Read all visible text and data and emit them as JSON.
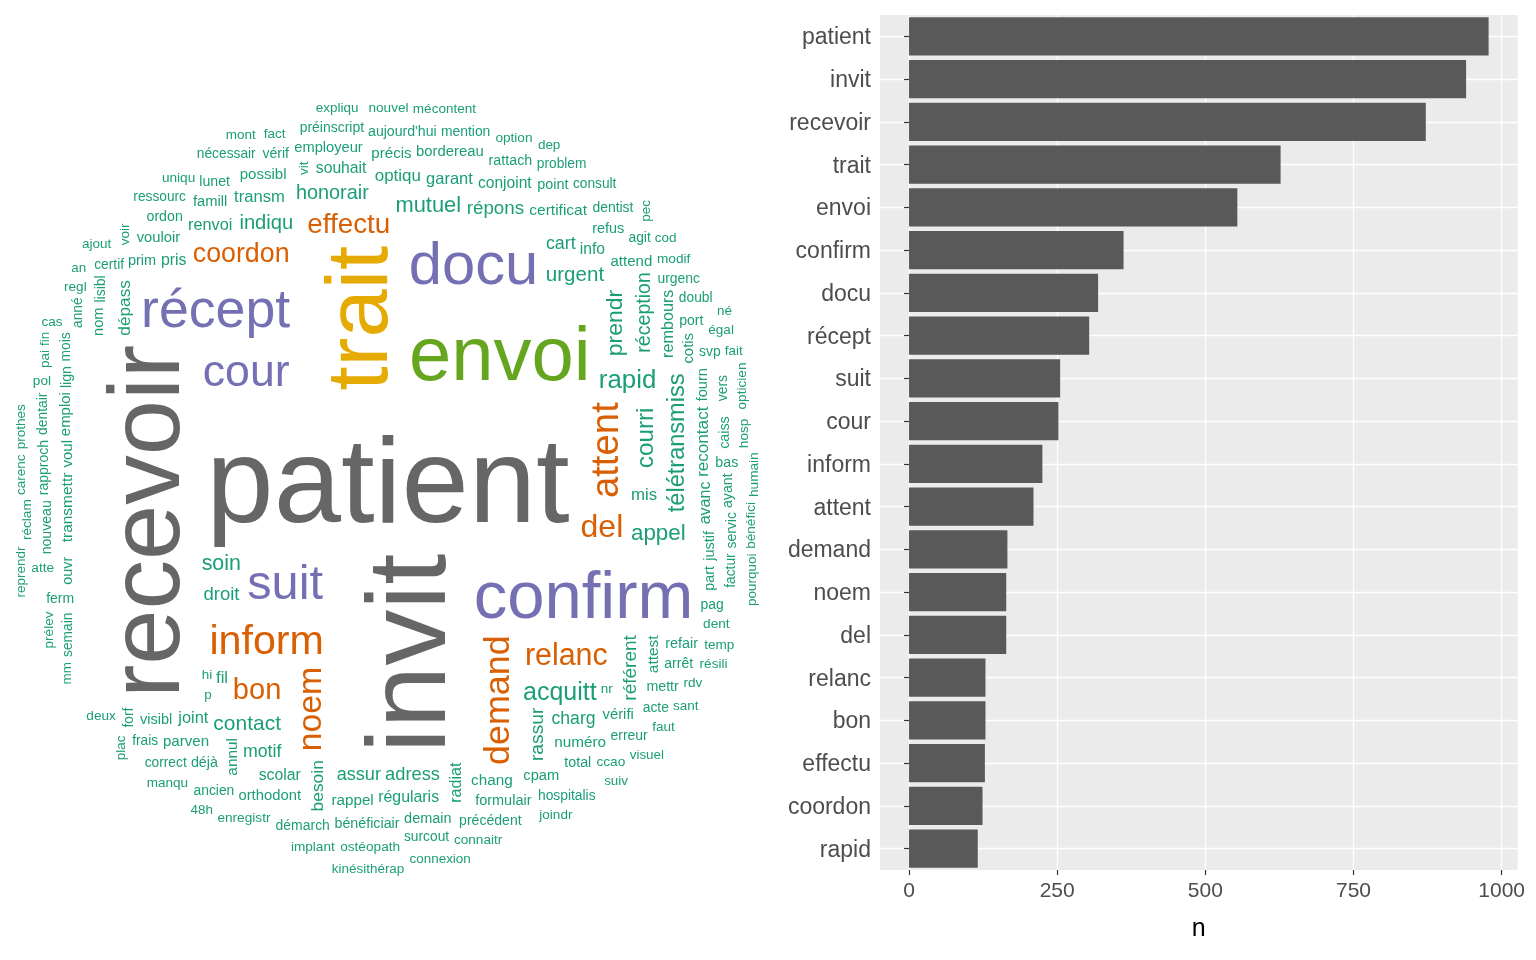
{
  "chart_data": [
    {
      "type": "other",
      "categories": [
        "patient",
        "invit",
        "recevoir",
        "trait",
        "envoi",
        "confirm",
        "docu",
        "récept",
        "suit",
        "cour",
        "inform",
        "attent",
        "demand",
        "noem",
        "del",
        "relanc",
        "bon",
        "effectu",
        "coordon",
        "rapid",
        "acquitt",
        "courri",
        "télétransmiss",
        "prendr",
        "appel",
        "mutuel",
        "soin",
        "contact",
        "urgent",
        "indiqu",
        "honorair",
        "réception",
        "rassur",
        "référent",
        "répons",
        "droit",
        "adress",
        "assur",
        "cart",
        "motif",
        "charg",
        "besoin",
        "dépass",
        "recontact",
        "optiqu",
        "mis",
        "fil",
        "transm",
        "garant",
        "joint",
        "renvoi",
        "rembours",
        "radiat",
        "avanc",
        "pris",
        "régularis",
        "scolar",
        "souhait",
        "info",
        "conjoint",
        "certificat",
        "transmettr",
        "attest",
        "annul",
        "chang",
        "numéro",
        "rappel",
        "précis",
        "parven",
        "attend",
        "possibl",
        "voul",
        "emploi",
        "cotis",
        "bordereau",
        "orthodont",
        "vérifi",
        "vouloir",
        "famill",
        "cpam",
        "employeur",
        "fourn",
        "justif",
        "nom",
        "visibl",
        "prim",
        "formulair",
        "demain",
        "refus",
        "refair",
        "point",
        "ouvr",
        "part",
        "caiss",
        "déjà",
        "bénéficiair",
        "rattach",
        "mettr",
        "total",
        "bas",
        "ordon",
        "ayant",
        "lign",
        "nouveau",
        "lunet",
        "aujourd'hui",
        "arrêt",
        "port",
        "vérif",
        "précédent",
        "ferm",
        "rapproch",
        "lisibl",
        "servic",
        "démarch",
        "préinscript",
        "erreur",
        "dentist",
        "urgenc",
        "svp",
        "pag",
        "vers",
        "dentair",
        "mois",
        "mention",
        "ancien",
        "agit",
        "certif",
        "hospitalis",
        "acte",
        "surcout",
        "semain",
        "factur",
        "anné",
        "correct",
        "nécessair",
        "problem",
        "ressourc",
        "consult",
        "doubl",
        "frais",
        "forf",
        "vit",
        "hosp",
        "atte",
        "dent",
        "ccao",
        "ostéopath",
        "modif",
        "enregistr",
        "pol",
        "opticien",
        "humain",
        "voir",
        "option",
        "fact",
        "connaitr",
        "uniqu",
        "nouvel",
        "égal",
        "implant",
        "réclam",
        "pai",
        "bénéfici",
        "temp",
        "manqu",
        "rdv",
        "deux",
        "regl",
        "mécontent",
        "cod",
        "carenc",
        "prothes",
        "prélev",
        "résili",
        "faut",
        "joindr",
        "cas",
        "ajout",
        "mont",
        "dep",
        "pourquoi",
        "reprendr",
        "pec",
        "expliqu",
        "connexion",
        "fait",
        "sant",
        "visuel",
        "kinésithérap",
        "suiv",
        "plac",
        "fin",
        "mm",
        "48h",
        "an",
        "né",
        "nr",
        "hi",
        "p"
      ],
      "colors": [
        "#666666",
        "#666666",
        "#666666",
        "#E6AB02",
        "#66A61E",
        "#7570B3",
        "#7570B3",
        "#7570B3",
        "#7570B3",
        "#7570B3",
        "#D95F02",
        "#D95F02",
        "#D95F02",
        "#D95F02",
        "#D95F02",
        "#D95F02",
        "#D95F02",
        "#D95F02",
        "#D95F02",
        "#1B9E77",
        "#1B9E77",
        "#1B9E77",
        "#1B9E77",
        "#1B9E77",
        "#1B9E77",
        "#1B9E77",
        "#1B9E77",
        "#1B9E77",
        "#1B9E77",
        "#1B9E77",
        "#1B9E77",
        "#1B9E77",
        "#1B9E77",
        "#1B9E77",
        "#1B9E77",
        "#1B9E77",
        "#1B9E77",
        "#1B9E77",
        "#1B9E77",
        "#1B9E77",
        "#1B9E77",
        "#1B9E77",
        "#1B9E77",
        "#1B9E77",
        "#1B9E77",
        "#1B9E77",
        "#1B9E77",
        "#1B9E77",
        "#1B9E77",
        "#1B9E77",
        "#1B9E77",
        "#1B9E77",
        "#1B9E77",
        "#1B9E77",
        "#1B9E77",
        "#1B9E77",
        "#1B9E77",
        "#1B9E77",
        "#1B9E77",
        "#1B9E77",
        "#1B9E77",
        "#1B9E77",
        "#1B9E77",
        "#1B9E77",
        "#1B9E77",
        "#1B9E77",
        "#1B9E77",
        "#1B9E77",
        "#1B9E77",
        "#1B9E77",
        "#1B9E77",
        "#1B9E77",
        "#1B9E77",
        "#1B9E77",
        "#1B9E77",
        "#1B9E77",
        "#1B9E77",
        "#1B9E77",
        "#1B9E77",
        "#1B9E77",
        "#1B9E77",
        "#1B9E77",
        "#1B9E77",
        "#1B9E77",
        "#1B9E77",
        "#1B9E77",
        "#1B9E77",
        "#1B9E77",
        "#1B9E77",
        "#1B9E77",
        "#1B9E77",
        "#1B9E77",
        "#1B9E77",
        "#1B9E77",
        "#1B9E77",
        "#1B9E77",
        "#1B9E77",
        "#1B9E77",
        "#1B9E77",
        "#1B9E77",
        "#1B9E77",
        "#1B9E77",
        "#1B9E77",
        "#1B9E77",
        "#1B9E77",
        "#1B9E77",
        "#1B9E77",
        "#1B9E77",
        "#1B9E77",
        "#1B9E77",
        "#1B9E77",
        "#1B9E77",
        "#1B9E77",
        "#1B9E77",
        "#1B9E77",
        "#1B9E77",
        "#1B9E77",
        "#1B9E77",
        "#1B9E77",
        "#1B9E77",
        "#1B9E77",
        "#1B9E77",
        "#1B9E77",
        "#1B9E77",
        "#1B9E77",
        "#1B9E77",
        "#1B9E77",
        "#1B9E77",
        "#1B9E77",
        "#1B9E77",
        "#1B9E77",
        "#1B9E77",
        "#1B9E77",
        "#1B9E77",
        "#1B9E77",
        "#1B9E77",
        "#1B9E77",
        "#1B9E77",
        "#1B9E77",
        "#1B9E77",
        "#1B9E77",
        "#1B9E77",
        "#1B9E77",
        "#1B9E77",
        "#1B9E77",
        "#1B9E77",
        "#1B9E77",
        "#1B9E77",
        "#1B9E77",
        "#1B9E77",
        "#1B9E77",
        "#1B9E77",
        "#1B9E77",
        "#1B9E77",
        "#1B9E77",
        "#1B9E77",
        "#1B9E77",
        "#1B9E77",
        "#1B9E77",
        "#1B9E77",
        "#1B9E77",
        "#1B9E77",
        "#1B9E77",
        "#1B9E77",
        "#1B9E77",
        "#1B9E77",
        "#1B9E77",
        "#1B9E77",
        "#1B9E77",
        "#1B9E77",
        "#1B9E77",
        "#1B9E77",
        "#1B9E77",
        "#1B9E77",
        "#1B9E77",
        "#1B9E77",
        "#1B9E77",
        "#1B9E77",
        "#1B9E77",
        "#1B9E77",
        "#1B9E77",
        "#1B9E77",
        "#1B9E77",
        "#1B9E77",
        "#1B9E77",
        "#1B9E77",
        "#1B9E77",
        "#1B9E77",
        "#1B9E77",
        "#1B9E77",
        "#1B9E77",
        "#1B9E77",
        "#1B9E77",
        "#1B9E77",
        "#1B9E77",
        "#1B9E77",
        "#1B9E77",
        "#1B9E77",
        "#1B9E77",
        "#1B9E77"
      ]
    },
    {
      "type": "bar",
      "orientation": "horizontal",
      "categories": [
        "patient",
        "invit",
        "recevoir",
        "trait",
        "envoi",
        "confirm",
        "docu",
        "récept",
        "suit",
        "cour",
        "inform",
        "attent",
        "demand",
        "noem",
        "del",
        "relanc",
        "bon",
        "effectu",
        "coordon",
        "rapid"
      ],
      "values": [
        978,
        940,
        872,
        627,
        554,
        362,
        319,
        304,
        255,
        252,
        225,
        210,
        166,
        164,
        164,
        129,
        129,
        128,
        124,
        116
      ],
      "color": "#595959",
      "xlim": [
        -49,
        1027
      ],
      "xticks": [
        0,
        250,
        500,
        750,
        1000
      ],
      "xlabel": "n",
      "grid": true
    }
  ]
}
